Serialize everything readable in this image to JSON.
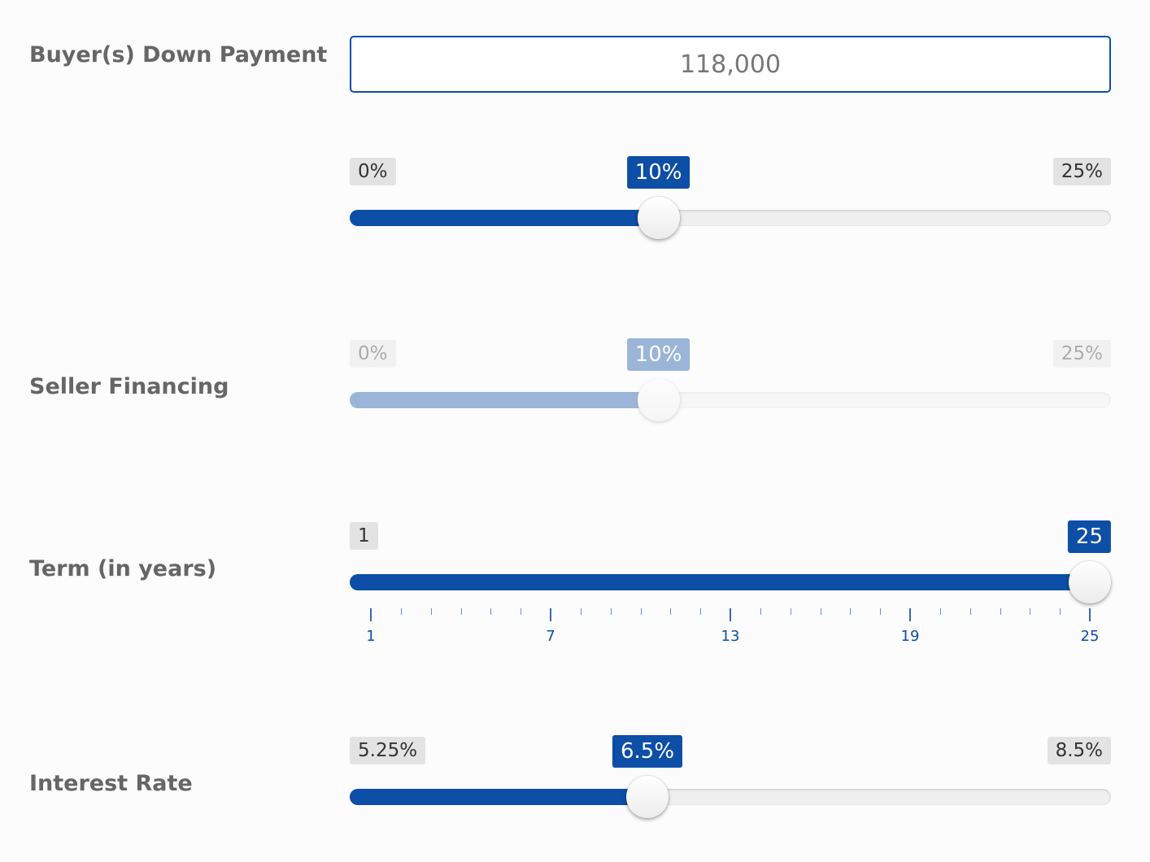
{
  "colors": {
    "accent": "#0d4ea6",
    "label_text": "#666666",
    "badge_bg": "#e3e3e3"
  },
  "down_payment": {
    "label": "Buyer(s) Down Payment",
    "input_value": "118,000",
    "slider": {
      "min_label": "0%",
      "max_label": "25%",
      "value_label": "10%",
      "min": 0,
      "max": 25,
      "value": 10
    }
  },
  "seller_financing": {
    "label": "Seller Financing",
    "disabled": true,
    "slider": {
      "min_label": "0%",
      "max_label": "25%",
      "value_label": "10%",
      "min": 0,
      "max": 25,
      "value": 10
    }
  },
  "term": {
    "label": "Term (in years)",
    "slider": {
      "min_label": "1",
      "value_label": "25",
      "min": 1,
      "max": 25,
      "value": 25,
      "major_ticks": [
        "1",
        "7",
        "13",
        "19",
        "25"
      ]
    }
  },
  "interest_rate": {
    "label": "Interest Rate",
    "slider": {
      "min_label": "5.25%",
      "max_label": "8.5%",
      "value_label": "6.5%",
      "min": 5.25,
      "max": 8.5,
      "value": 6.5
    }
  }
}
